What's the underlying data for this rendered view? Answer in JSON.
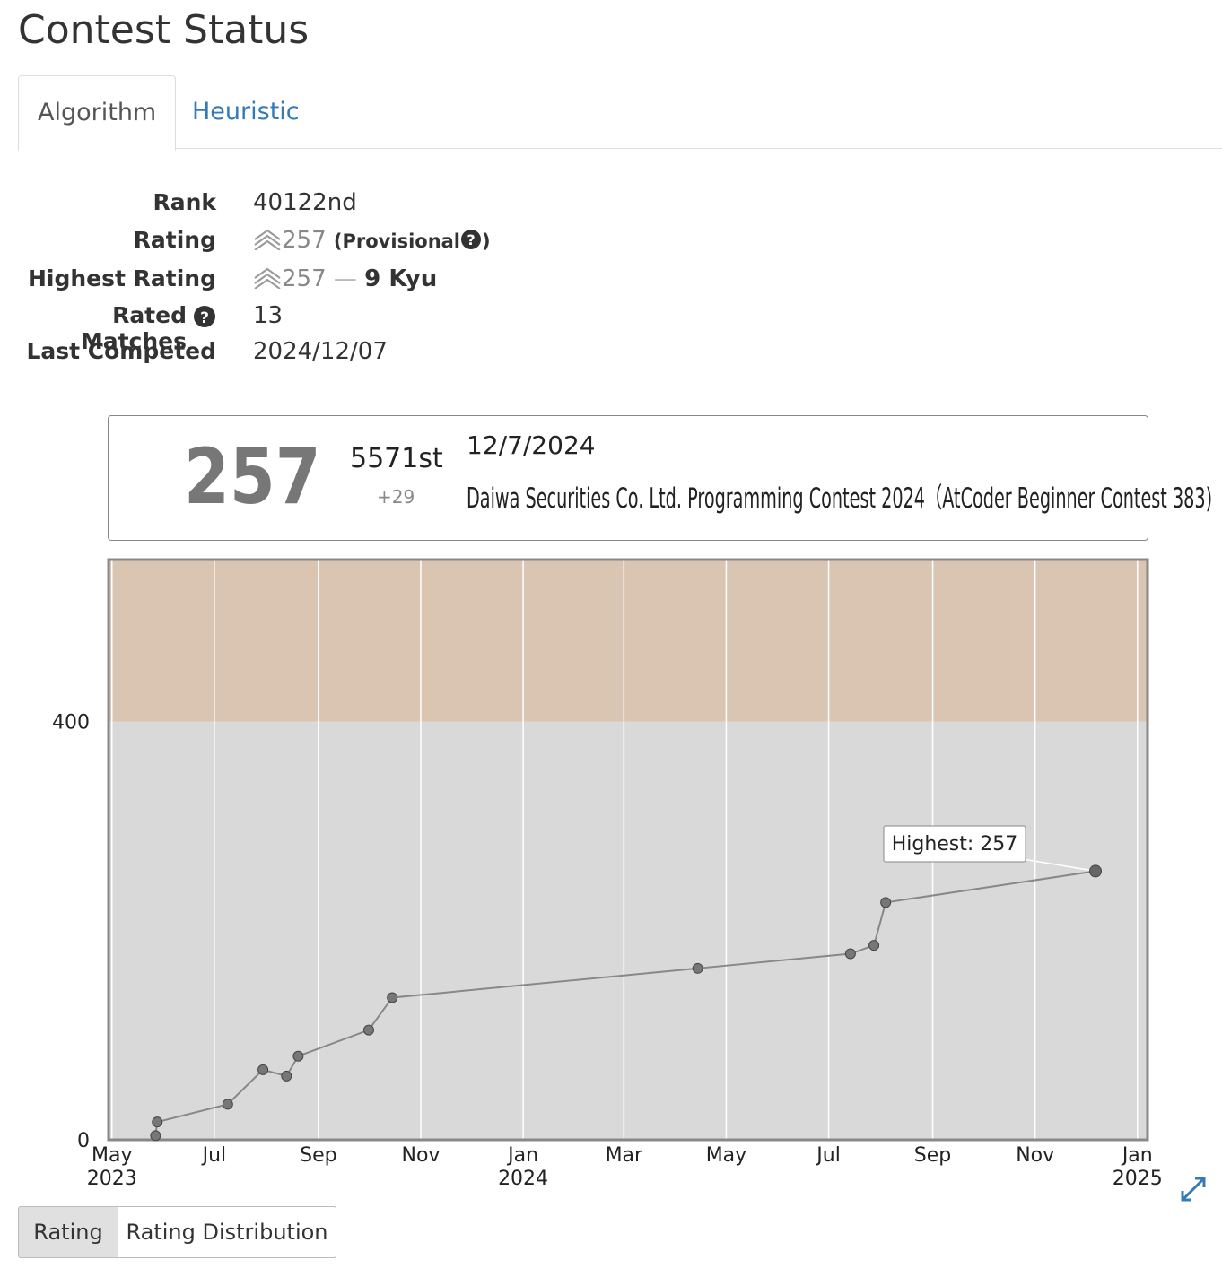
{
  "header": {
    "title": "Contest Status"
  },
  "tabs": [
    "Algorithm",
    "Heuristic"
  ],
  "profile": {
    "rank": {
      "label": "Rank",
      "value": "40122nd"
    },
    "rating": {
      "label": "Rating",
      "value": "257",
      "note": "(Provisional",
      "note_end": ")"
    },
    "highest_rating": {
      "label": "Highest Rating",
      "value": "257",
      "separator": "—",
      "rank": "9 Kyu"
    },
    "rated_matches": {
      "label": "Rated Matches",
      "value": "13"
    },
    "last_competed": {
      "label": "Last Competed",
      "value": "2024/12/07"
    }
  },
  "summary": {
    "rating": "257",
    "place": "5571st",
    "diff": "+29",
    "date": "12/7/2024",
    "contest": "Daiwa Securities Co. Ltd. Programming Contest 2024（AtCoder Beginner Contest 383)"
  },
  "chart_data": {
    "type": "line",
    "x": [
      "2023-05-27",
      "2023-05-28",
      "2023-07-09",
      "2023-07-30",
      "2023-08-13",
      "2023-08-20",
      "2023-10-01",
      "2023-10-15",
      "2024-04-14",
      "2024-07-14",
      "2024-07-28",
      "2024-08-04",
      "2024-12-07"
    ],
    "series": [
      {
        "name": "Rating",
        "color": "#888888",
        "values": [
          4,
          17,
          34,
          67,
          61,
          80,
          105,
          136,
          164,
          178,
          186,
          227,
          257
        ]
      }
    ],
    "xlim": [
      "2023-04-29",
      "2025-01-07"
    ],
    "xticks": [
      {
        "value": "2023-05-01",
        "label": "May 2023"
      },
      {
        "value": "2023-07-01",
        "label": "Jul"
      },
      {
        "value": "2023-09-01",
        "label": "Sep"
      },
      {
        "value": "2023-11-01",
        "label": "Nov"
      },
      {
        "value": "2024-01-01",
        "label": "Jan 2024"
      },
      {
        "value": "2024-03-01",
        "label": "Mar"
      },
      {
        "value": "2024-05-01",
        "label": "May"
      },
      {
        "value": "2024-07-01",
        "label": "Jul"
      },
      {
        "value": "2024-09-01",
        "label": "Sep"
      },
      {
        "value": "2024-11-01",
        "label": "Nov"
      },
      {
        "value": "2025-01-01",
        "label": "Jan 2025"
      }
    ],
    "ylim": [
      0,
      555
    ],
    "yticks": [
      0,
      400
    ],
    "bands": [
      {
        "range": [
          0,
          400
        ],
        "color": "#d9d9d9"
      },
      {
        "range": [
          400,
          555
        ],
        "color": "#d9c5b2"
      }
    ],
    "grid": true,
    "annotation": "Highest: 257"
  },
  "buttons": [
    "Rating",
    "Rating Distribution"
  ]
}
